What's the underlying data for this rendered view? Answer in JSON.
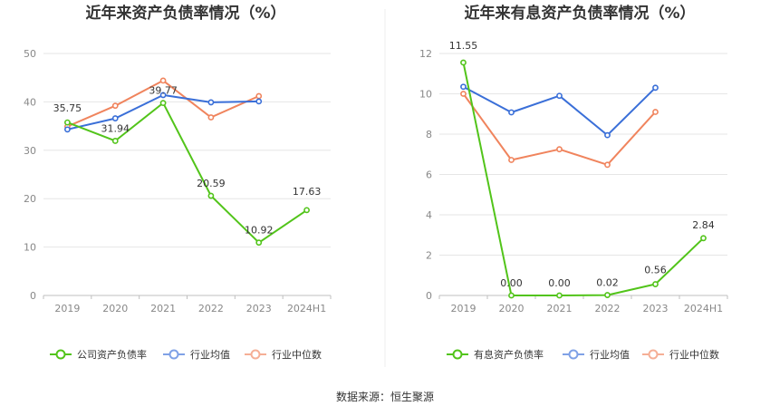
{
  "source": "数据来源：恒生聚源",
  "chart_data": [
    {
      "type": "line",
      "title": "近年来资产负债率情况（%）",
      "categories": [
        "2019",
        "2020",
        "2021",
        "2022",
        "2023",
        "2024H1"
      ],
      "ylim": [
        0,
        50
      ],
      "yticks": [
        0,
        10,
        20,
        30,
        40,
        50
      ],
      "grid": true,
      "legend_position": "bottom",
      "series": [
        {
          "name": "公司资产负债率",
          "color": "#52c41a",
          "values": [
            35.75,
            31.94,
            39.77,
            20.59,
            10.92,
            17.63
          ],
          "labels": [
            "35.75",
            "31.94",
            "39.77",
            "20.59",
            "10.92",
            "17.63"
          ]
        },
        {
          "name": "行业均值",
          "color": "#3a6fd8",
          "values": [
            34.3,
            36.6,
            41.4,
            39.9,
            40.1,
            null
          ]
        },
        {
          "name": "行业中位数",
          "color": "#f0845d",
          "values": [
            34.9,
            39.2,
            44.4,
            36.8,
            41.2,
            null
          ]
        }
      ]
    },
    {
      "type": "line",
      "title": "近年来有息资产负债率情况（%）",
      "categories": [
        "2019",
        "2020",
        "2021",
        "2022",
        "2023",
        "2024H1"
      ],
      "ylim": [
        0,
        12
      ],
      "yticks": [
        0,
        2,
        4,
        6,
        8,
        10,
        12
      ],
      "grid": true,
      "legend_position": "bottom",
      "series": [
        {
          "name": "有息资产负债率",
          "color": "#52c41a",
          "values": [
            11.55,
            0.0,
            0.0,
            0.02,
            0.56,
            2.84
          ],
          "labels": [
            "11.55",
            "0.00",
            "0.00",
            "0.02",
            "0.56",
            "2.84"
          ]
        },
        {
          "name": "行业均值",
          "color": "#3a6fd8",
          "values": [
            10.35,
            9.08,
            9.9,
            7.95,
            10.3,
            null
          ]
        },
        {
          "name": "行业中位数",
          "color": "#f0845d",
          "values": [
            10.0,
            6.72,
            7.25,
            6.48,
            9.1,
            null
          ]
        }
      ]
    }
  ]
}
